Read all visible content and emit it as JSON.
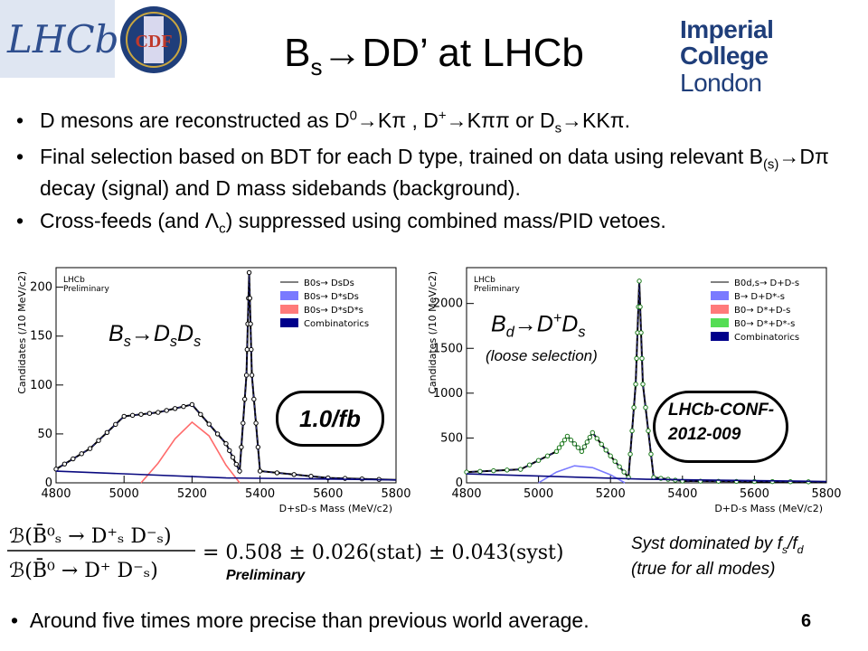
{
  "logos": {
    "lhcb_text": "LHCb",
    "cdf_text": "CDF",
    "imperial_line1": "Imperial College",
    "imperial_line2": "London",
    "imperial_color": "#1f3e7a"
  },
  "title": {
    "main": "B",
    "sub": "s",
    "rest": "→DD’ at LHCb"
  },
  "bullets": [
    "D mesons are reconstructed as D0→Kπ , D+→Kππ or Ds→KKπ.",
    "Final selection based on BDT for each D type, trained on data using relevant B(s)→Dπ decay (signal) and D mass sidebands (background).",
    "Cross-feeds (and Λc) suppressed using combined mass/PID vetoes."
  ],
  "plot_left": {
    "label": "Bs→DsDs",
    "lumi": "1.0/fb",
    "watermark_1": "LHCb",
    "watermark_2": "Preliminary",
    "xlabel": "D+sD-s Mass (MeV/c2)",
    "ylabel": "Candidates (/10 MeV/c2)",
    "xticks": [
      "4800",
      "5000",
      "5200",
      "5400",
      "5600",
      "5800"
    ],
    "yticks": [
      "0",
      "50",
      "100",
      "150",
      "200"
    ],
    "legend": [
      {
        "text": "B0s→ DsDs",
        "color": "#ffffff"
      },
      {
        "text": "B0s→ D*sDs",
        "color": "#7a7aff"
      },
      {
        "text": "B0s→ D*sD*s",
        "color": "#ff7a7a"
      },
      {
        "text": "Combinatorics",
        "color": "#00008b"
      }
    ]
  },
  "plot_right": {
    "label": "Bd→D+Ds",
    "label_note": "(loose selection)",
    "conf_line1": "LHCb-CONF-",
    "conf_line2": "2012-009",
    "watermark_1": "LHCb",
    "watermark_2": "Preliminary",
    "xlabel": "D+D-s Mass (MeV/c2)",
    "ylabel": "Candidates (/10 MeV/c2)",
    "xticks": [
      "4800",
      "5000",
      "5200",
      "5400",
      "5600",
      "5800"
    ],
    "yticks": [
      "0",
      "500",
      "1000",
      "1500",
      "2000"
    ],
    "legend": [
      {
        "text": "B0d,s→ D+D-s",
        "color": "#ffffff"
      },
      {
        "text": "B→ D+D*-s",
        "color": "#7a7aff"
      },
      {
        "text": "B0→ D*+D-s",
        "color": "#ff7a7a"
      },
      {
        "text": "B0→ D*+D*-s",
        "color": "#55dd55"
      },
      {
        "text": "Combinatorics",
        "color": "#00008b"
      }
    ]
  },
  "chart_data": [
    {
      "type": "line",
      "title": "",
      "xlabel": "D+sD-s Mass (MeV/c2)",
      "ylabel": "Candidates (/10 MeV/c2)",
      "xlim": [
        4800,
        5800
      ],
      "ylim": [
        0,
        220
      ],
      "legend_position": "top-right",
      "series": [
        {
          "name": "B0s→ DsDs",
          "x": [
            4800,
            4900,
            5000,
            5100,
            5200,
            5300,
            5340,
            5360,
            5368,
            5376,
            5400,
            5600,
            5800
          ],
          "y": [
            14,
            35,
            68,
            72,
            80,
            40,
            12,
            110,
            215,
            110,
            12,
            5,
            3
          ]
        },
        {
          "name": "B0s→ D*sD*s",
          "x": [
            5050,
            5100,
            5150,
            5200,
            5250,
            5300,
            5340
          ],
          "y": [
            0,
            20,
            45,
            62,
            48,
            18,
            0
          ]
        },
        {
          "name": "Combinatorics",
          "x": [
            4800,
            5300,
            5800
          ],
          "y": [
            12,
            5,
            3
          ]
        }
      ]
    },
    {
      "type": "line",
      "title": "",
      "xlabel": "D+D-s Mass (MeV/c2)",
      "ylabel": "Candidates (/10 MeV/c2)",
      "xlim": [
        4800,
        5800
      ],
      "ylim": [
        0,
        2400
      ],
      "legend_position": "top-right",
      "series": [
        {
          "name": "B0d,s→ D+D-s",
          "x": [
            4800,
            4950,
            5050,
            5080,
            5120,
            5150,
            5200,
            5250,
            5270,
            5280,
            5290,
            5320,
            5400,
            5600,
            5800
          ],
          "y": [
            120,
            150,
            350,
            520,
            350,
            560,
            300,
            60,
            1100,
            2250,
            1100,
            60,
            20,
            15,
            10
          ]
        },
        {
          "name": "B→ D+D*-s",
          "x": [
            5000,
            5050,
            5100,
            5150,
            5200,
            5240
          ],
          "y": [
            0,
            120,
            190,
            170,
            90,
            0
          ]
        },
        {
          "name": "Combinatorics",
          "x": [
            4800,
            5300,
            5800
          ],
          "y": [
            100,
            40,
            15
          ]
        }
      ]
    }
  ],
  "formula": {
    "num": "ℬ(B̄⁰ₛ → D⁺ₛ D⁻ₛ)",
    "den": "ℬ(B̄⁰ → D⁺ D⁻ₛ)",
    "result": "= 0.508 ± 0.026(stat) ± 0.043(syst)"
  },
  "preliminary": "Preliminary",
  "syst_note_1": "Syst dominated by fs/fd",
  "syst_note_2": "(true for all modes)",
  "last_bullet": "Around five times more precise than previous world average.",
  "slide_number": "6"
}
